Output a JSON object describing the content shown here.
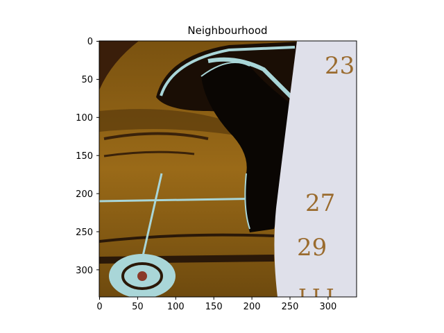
{
  "figure": {
    "title": "Neighbourhood",
    "x_ticks": [
      "0",
      "50",
      "100",
      "150",
      "200",
      "250",
      "300"
    ],
    "y_ticks": [
      "0",
      "50",
      "100",
      "150",
      "200",
      "250",
      "300"
    ],
    "xlim": [
      0,
      338
    ],
    "ylim": [
      0,
      338
    ]
  },
  "image_content": {
    "page_numbers": [
      "23",
      "27",
      "29",
      "LLI"
    ]
  },
  "colors": {
    "car_body": "#8a5e14",
    "dark": "#1a0e05",
    "highlight": "#a9d6d8",
    "page": "#dfe0ea",
    "number_ink": "#9a6b2e"
  }
}
